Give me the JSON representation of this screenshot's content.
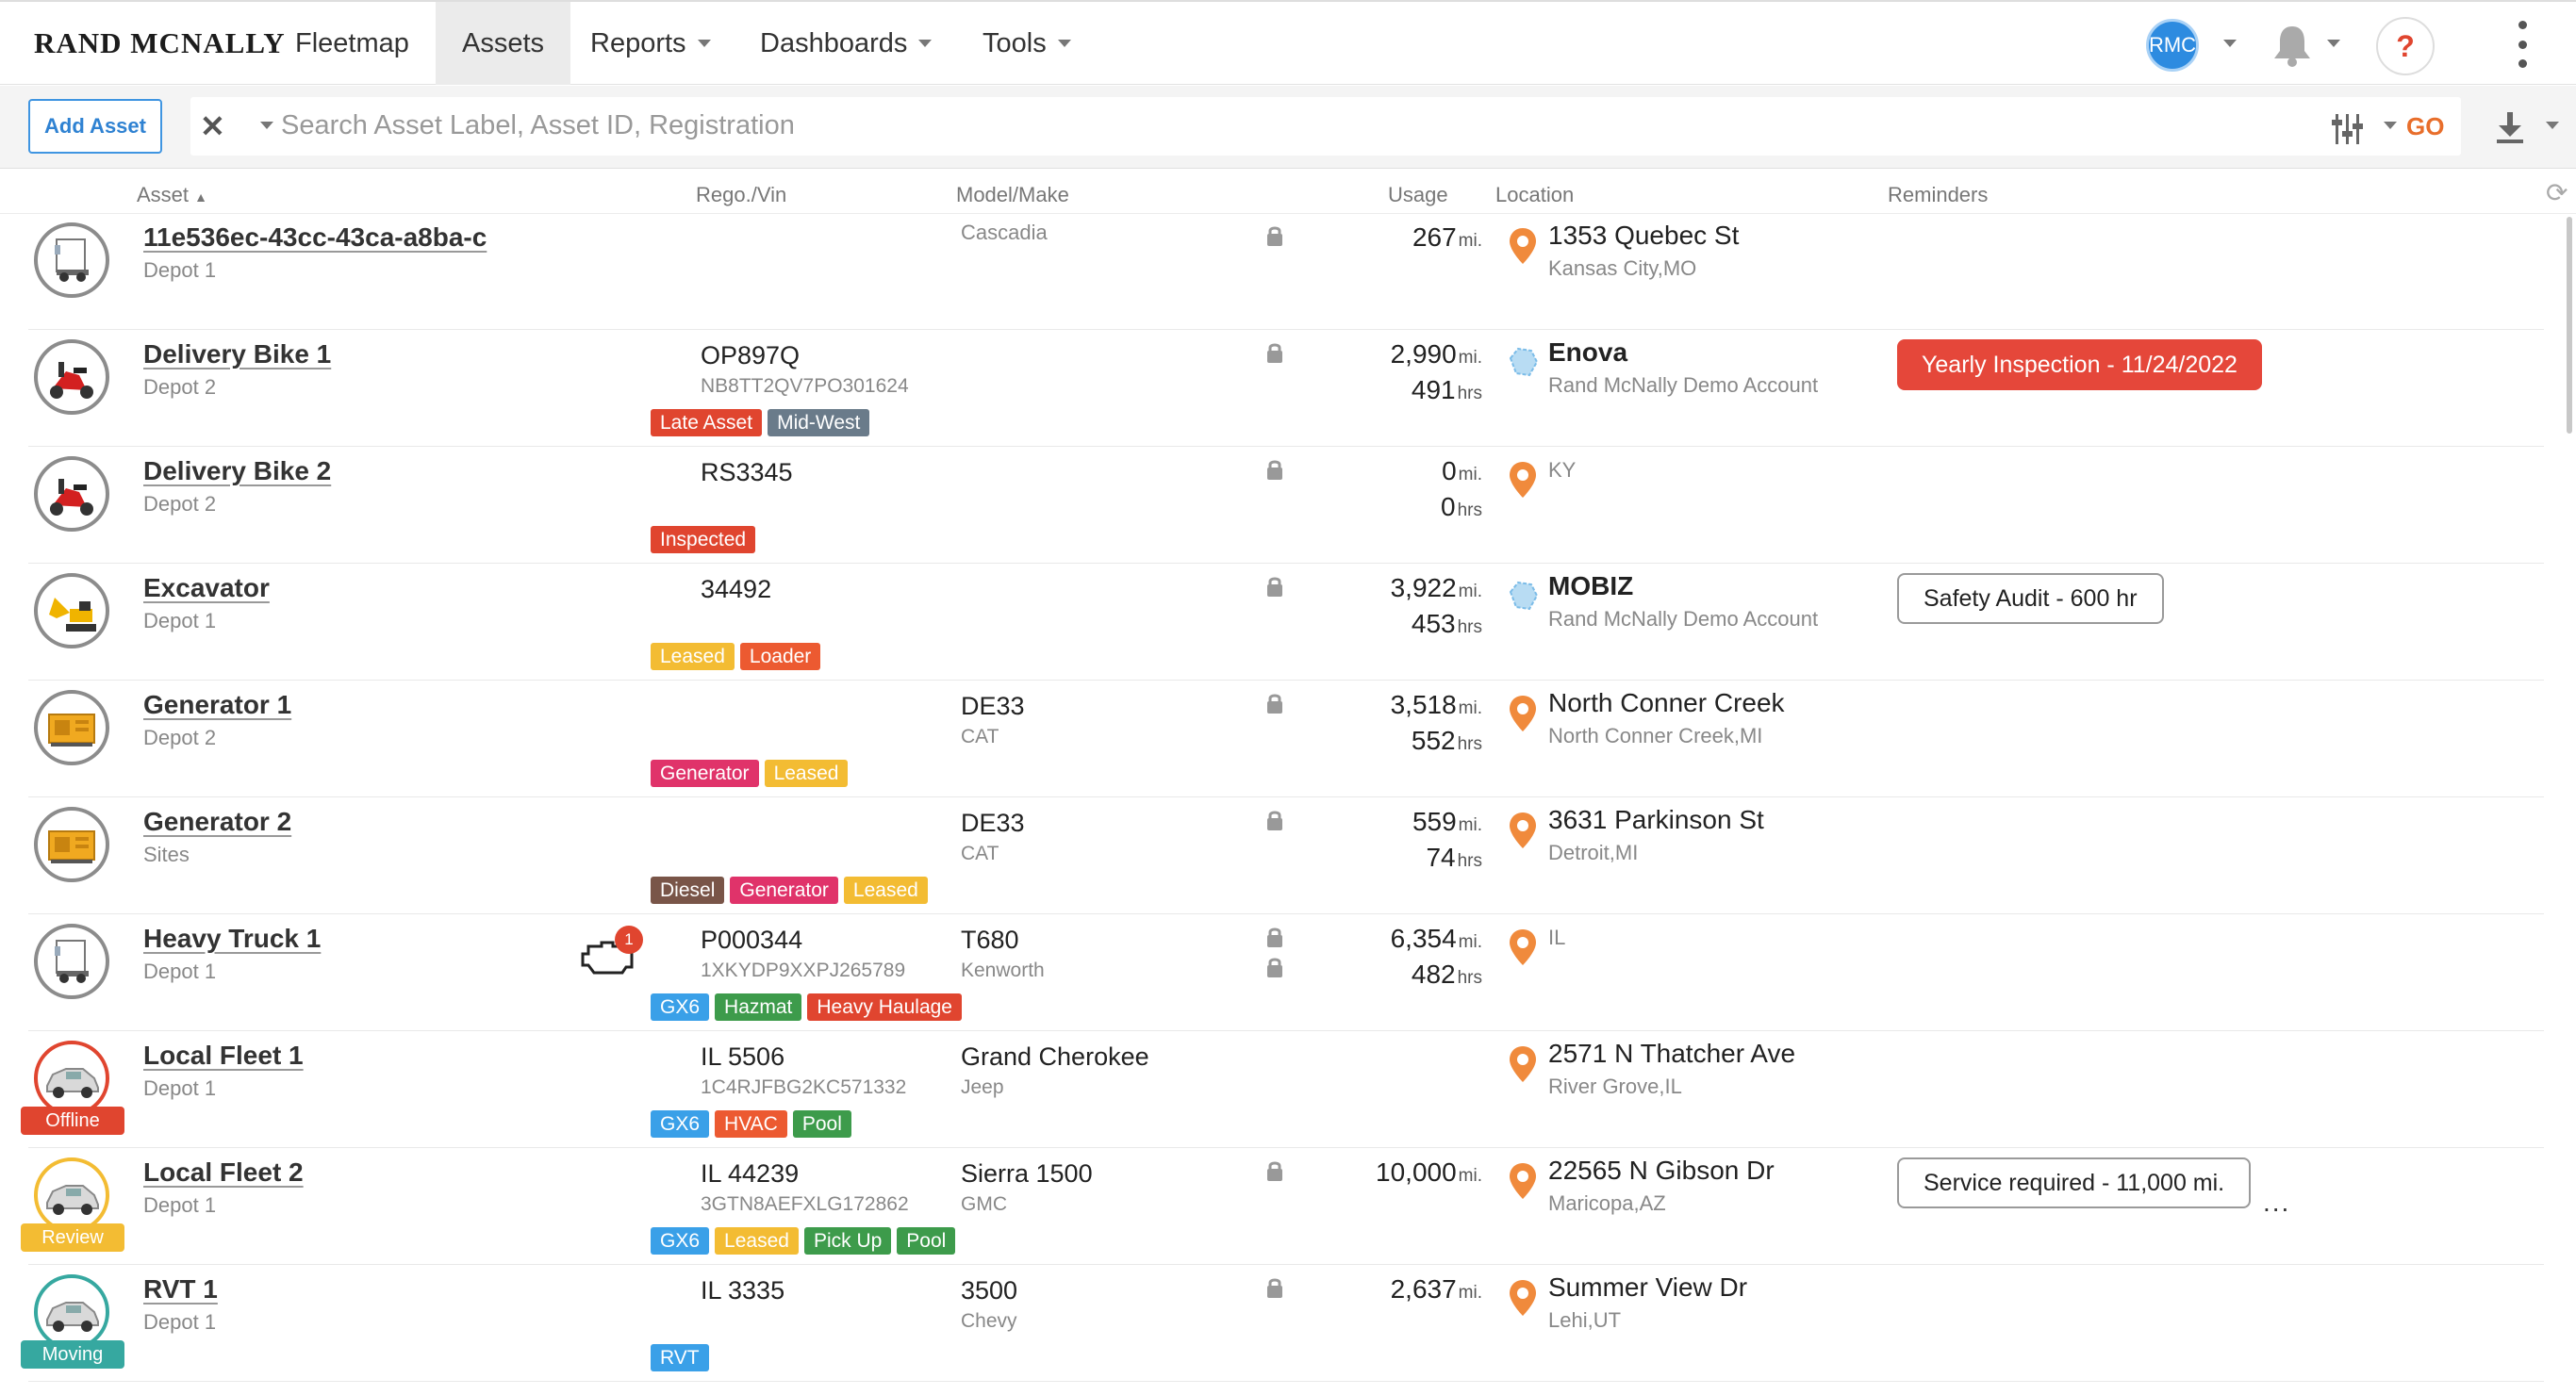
{
  "header": {
    "logo": "RAND MCNALLY",
    "nav": [
      {
        "label": "Fleetmap",
        "dropdown": false
      },
      {
        "label": "Assets",
        "dropdown": false,
        "active": true
      },
      {
        "label": "Reports",
        "dropdown": true
      },
      {
        "label": "Dashboards",
        "dropdown": true
      },
      {
        "label": "Tools",
        "dropdown": true
      }
    ],
    "avatar_initials": "RMC",
    "help_label": "?"
  },
  "toolbar": {
    "add_label": "Add Asset",
    "search_placeholder": "Search Asset Label, Asset ID, Registration",
    "go_label": "GO"
  },
  "columns": {
    "asset": "Asset",
    "rego": "Rego./Vin",
    "model": "Model/Make",
    "usage": "Usage",
    "location": "Location",
    "reminders": "Reminders"
  },
  "colors": {
    "accent_blue": "#2f82d2",
    "go_orange": "#e86e2b",
    "tag_red": "#e0452f",
    "tag_slate": "#6a7b8a",
    "tag_yellow": "#f3bc33",
    "tag_orange": "#ec5a31",
    "tag_pink": "#e0336a",
    "tag_brown": "#795548",
    "tag_blue": "#3aa0e8",
    "tag_green": "#3d9b4b"
  },
  "assets": [
    {
      "name": "11e536ec-43cc-43ca-a8ba-c",
      "depot": "Depot 1",
      "icon": "truck-icon",
      "rego": "",
      "vin": "",
      "model": "Cascadia",
      "model_small": true,
      "make": "",
      "tags": [],
      "lock": 1,
      "usage1": "267",
      "unit1": "mi.",
      "usage2": "",
      "unit2": "",
      "loc_icon": "pin",
      "loc1": "1353 Quebec St",
      "loc1_bold": false,
      "loc1_small": false,
      "loc2": "Kansas City,MO",
      "reminder": "",
      "reminder_style": "",
      "status": "",
      "engine_alert": ""
    },
    {
      "name": "Delivery Bike 1",
      "depot": "Depot 2",
      "icon": "scooter-icon",
      "rego": "OP897Q",
      "vin": "NB8TT2QV7PO301624",
      "model": "",
      "make": "",
      "tags": [
        {
          "label": "Late Asset",
          "color": "#e0452f"
        },
        {
          "label": "Mid-West",
          "color": "#6a7b8a"
        }
      ],
      "lock": 1,
      "usage1": "2,990",
      "unit1": "mi.",
      "usage2": "491",
      "unit2": "hrs",
      "loc_icon": "geofence",
      "loc1": "Enova",
      "loc1_bold": true,
      "loc1_small": false,
      "loc2": "Rand McNally Demo Account",
      "reminder": "Yearly Inspection - 11/24/2022",
      "reminder_style": "red",
      "status": "",
      "engine_alert": ""
    },
    {
      "name": "Delivery Bike 2",
      "depot": "Depot 2",
      "icon": "scooter-icon",
      "rego": "RS3345",
      "vin": "",
      "model": "",
      "make": "",
      "tags": [
        {
          "label": "Inspected",
          "color": "#e0452f"
        }
      ],
      "lock": 1,
      "usage1": "0",
      "unit1": "mi.",
      "usage2": "0",
      "unit2": "hrs",
      "loc_icon": "pin",
      "loc1": "KY",
      "loc1_bold": false,
      "loc1_small": true,
      "loc2": "",
      "reminder": "",
      "reminder_style": "",
      "status": "",
      "engine_alert": ""
    },
    {
      "name": "Excavator",
      "depot": "Depot 1",
      "icon": "excavator-icon",
      "rego": "34492",
      "vin": "",
      "model": "",
      "make": "",
      "tags": [
        {
          "label": "Leased",
          "color": "#f3bc33"
        },
        {
          "label": "Loader",
          "color": "#ec5a31"
        }
      ],
      "lock": 1,
      "usage1": "3,922",
      "unit1": "mi.",
      "usage2": "453",
      "unit2": "hrs",
      "loc_icon": "geofence",
      "loc1": "MOBIZ",
      "loc1_bold": true,
      "loc1_small": false,
      "loc2": "Rand McNally Demo Account",
      "reminder": "Safety Audit - 600 hr",
      "reminder_style": "outline",
      "status": "",
      "engine_alert": ""
    },
    {
      "name": "Generator 1",
      "depot": "Depot 2",
      "icon": "generator-icon",
      "rego": "",
      "vin": "",
      "model": "DE33",
      "make": "CAT",
      "tags": [
        {
          "label": "Generator",
          "color": "#e0336a"
        },
        {
          "label": "Leased",
          "color": "#f3bc33"
        }
      ],
      "lock": 1,
      "usage1": "3,518",
      "unit1": "mi.",
      "usage2": "552",
      "unit2": "hrs",
      "loc_icon": "pin",
      "loc1": "North Conner Creek",
      "loc1_bold": false,
      "loc1_small": false,
      "loc2": "North Conner Creek,MI",
      "reminder": "",
      "reminder_style": "",
      "status": "",
      "engine_alert": ""
    },
    {
      "name": "Generator 2",
      "depot": "Sites",
      "icon": "generator-icon",
      "rego": "",
      "vin": "",
      "model": "DE33",
      "make": "CAT",
      "tags": [
        {
          "label": "Diesel",
          "color": "#795548"
        },
        {
          "label": "Generator",
          "color": "#e0336a"
        },
        {
          "label": "Leased",
          "color": "#f3bc33"
        }
      ],
      "lock": 1,
      "usage1": "559",
      "unit1": "mi.",
      "usage2": "74",
      "unit2": "hrs",
      "loc_icon": "pin",
      "loc1": "3631 Parkinson St",
      "loc1_bold": false,
      "loc1_small": false,
      "loc2": "Detroit,MI",
      "reminder": "",
      "reminder_style": "",
      "status": "",
      "engine_alert": ""
    },
    {
      "name": "Heavy Truck 1",
      "depot": "Depot 1",
      "icon": "truck-icon",
      "rego": "P000344",
      "vin": "1XKYDP9XXPJ265789",
      "model": "T680",
      "make": "Kenworth",
      "tags": [
        {
          "label": "GX6",
          "color": "#3aa0e8"
        },
        {
          "label": "Hazmat",
          "color": "#3d9b4b"
        },
        {
          "label": "Heavy Haulage",
          "color": "#e0452f"
        }
      ],
      "lock": 2,
      "usage1": "6,354",
      "unit1": "mi.",
      "usage2": "482",
      "unit2": "hrs",
      "loc_icon": "pin",
      "loc1": "IL",
      "loc1_bold": false,
      "loc1_small": true,
      "loc2": "",
      "reminder": "",
      "reminder_style": "",
      "status": "",
      "engine_alert": "1"
    },
    {
      "name": "Local Fleet 1",
      "depot": "Depot 1",
      "icon": "car-icon",
      "rego": "IL 5506",
      "vin": "1C4RJFBG2KC571332",
      "model": "Grand Cherokee",
      "make": "Jeep",
      "tags": [
        {
          "label": "GX6",
          "color": "#3aa0e8"
        },
        {
          "label": "HVAC",
          "color": "#ec5a31"
        },
        {
          "label": "Pool",
          "color": "#3d9b4b"
        }
      ],
      "lock": 0,
      "usage1": "",
      "unit1": "",
      "usage2": "",
      "unit2": "",
      "loc_icon": "pin",
      "loc1": "2571 N Thatcher Ave",
      "loc1_bold": false,
      "loc1_small": false,
      "loc2": "River Grove,IL",
      "reminder": "",
      "reminder_style": "",
      "status": "Offline",
      "status_color": "#e0452f",
      "ring": "red",
      "engine_alert": ""
    },
    {
      "name": "Local Fleet 2",
      "depot": "Depot 1",
      "icon": "car-icon",
      "rego": "IL 44239",
      "vin": "3GTN8AEFXLG172862",
      "model": "Sierra 1500",
      "make": "GMC",
      "tags": [
        {
          "label": "GX6",
          "color": "#3aa0e8"
        },
        {
          "label": "Leased",
          "color": "#f3bc33"
        },
        {
          "label": "Pick Up",
          "color": "#3d9b4b"
        },
        {
          "label": "Pool",
          "color": "#3d9b4b"
        }
      ],
      "lock": 1,
      "usage1": "10,000",
      "unit1": "mi.",
      "usage2": "",
      "unit2": "",
      "loc_icon": "pin",
      "loc1": "22565 N Gibson Dr",
      "loc1_bold": false,
      "loc1_small": false,
      "loc2": "Maricopa,AZ",
      "reminder": "Service required - 11,000 mi.",
      "reminder_style": "outline",
      "more": "...",
      "status": "Review",
      "status_color": "#f3bc33",
      "ring": "yellow",
      "engine_alert": ""
    },
    {
      "name": "RVT 1",
      "depot": "Depot 1",
      "icon": "car-icon",
      "rego": "IL 3335",
      "vin": "",
      "model": "3500",
      "make": "Chevy",
      "tags": [
        {
          "label": "RVT",
          "color": "#3aa0e8"
        }
      ],
      "lock": 1,
      "usage1": "2,637",
      "unit1": "mi.",
      "usage2": "",
      "unit2": "",
      "loc_icon": "pin",
      "loc1": "Summer View Dr",
      "loc1_bold": false,
      "loc1_small": false,
      "loc2": "Lehi,UT",
      "reminder": "",
      "reminder_style": "",
      "status": "Moving",
      "status_color": "#36a8a0",
      "ring": "teal",
      "engine_alert": ""
    }
  ]
}
